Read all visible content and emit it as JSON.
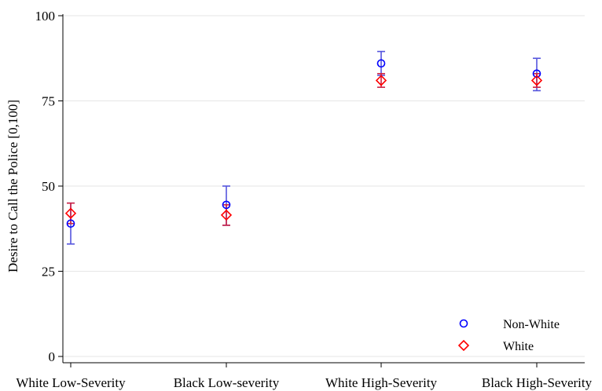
{
  "chart_data": {
    "type": "scatter",
    "ylabel": "Desire to Call the Police [0,100]",
    "xlabel": "",
    "ylim": [
      0,
      100
    ],
    "yticks": [
      0,
      25,
      50,
      75,
      100
    ],
    "categories": [
      "White Low-Severity",
      "Black Low-severity",
      "White High-Severity",
      "Black High-Severity"
    ],
    "error_bars": true,
    "grid": true,
    "legend_position": "bottom-right",
    "series": [
      {
        "name": "Non-White",
        "marker": "circle",
        "color": "#0000ff",
        "errorbar_color": "#5555dd",
        "values": [
          39,
          44.5,
          86,
          83
        ],
        "ci_low": [
          33,
          38.5,
          82.5,
          78
        ],
        "ci_high": [
          45,
          50,
          89.5,
          87.5
        ]
      },
      {
        "name": "White",
        "marker": "diamond",
        "color": "#ff0000",
        "errorbar_color": "#cc2244",
        "values": [
          42,
          41.5,
          81,
          81
        ],
        "ci_low": [
          39,
          38.5,
          79,
          79
        ],
        "ci_high": [
          45,
          44.5,
          83,
          83
        ]
      }
    ]
  }
}
